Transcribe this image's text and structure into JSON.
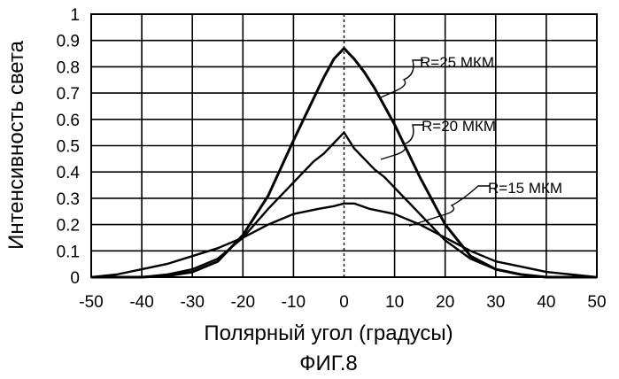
{
  "chart_data": {
    "type": "line",
    "title": "",
    "caption": "ФИГ.8",
    "xlabel": "Полярный угол (градусы)",
    "ylabel": "Интенсивность света",
    "xlim": [
      -50,
      50
    ],
    "ylim": [
      0,
      1
    ],
    "xticks": [
      -50,
      -40,
      -30,
      -20,
      -10,
      0,
      10,
      20,
      30,
      40,
      50
    ],
    "yticks": [
      0,
      0.1,
      0.2,
      0.3,
      0.4,
      0.5,
      0.6,
      0.7,
      0.8,
      0.9,
      1
    ],
    "ytick_labels": [
      "0",
      "0.1",
      "0.2",
      "0.3",
      "0.4",
      "0.5",
      "0.6",
      "0.7",
      "0.8",
      "0.9",
      "1"
    ],
    "grid": true,
    "series": [
      {
        "name": "R=25 МКМ",
        "x": [
          -50,
          -40,
          -35,
          -30,
          -25,
          -20,
          -15,
          -10,
          -8,
          -6,
          -4,
          -2,
          0,
          2,
          4,
          6,
          8,
          10,
          15,
          20,
          25,
          30,
          35,
          40,
          50
        ],
        "y": [
          0,
          0,
          0.005,
          0.02,
          0.06,
          0.16,
          0.31,
          0.52,
          0.6,
          0.68,
          0.76,
          0.83,
          0.87,
          0.83,
          0.78,
          0.72,
          0.65,
          0.58,
          0.38,
          0.2,
          0.08,
          0.03,
          0.01,
          0,
          0
        ]
      },
      {
        "name": "R=20 МКМ",
        "x": [
          -50,
          -40,
          -35,
          -30,
          -25,
          -20,
          -15,
          -10,
          -8,
          -6,
          -4,
          -2,
          0,
          2,
          4,
          6,
          8,
          10,
          15,
          20,
          25,
          30,
          35,
          40,
          50
        ],
        "y": [
          0,
          0,
          0.01,
          0.03,
          0.07,
          0.15,
          0.26,
          0.36,
          0.4,
          0.44,
          0.47,
          0.51,
          0.55,
          0.49,
          0.45,
          0.41,
          0.38,
          0.34,
          0.24,
          0.14,
          0.07,
          0.03,
          0.01,
          0,
          0
        ]
      },
      {
        "name": "R=15 МКМ",
        "x": [
          -50,
          -45,
          -40,
          -35,
          -30,
          -25,
          -20,
          -15,
          -10,
          -5,
          -2,
          0,
          2,
          5,
          10,
          15,
          20,
          25,
          30,
          35,
          40,
          45,
          50
        ],
        "y": [
          0,
          0.01,
          0.03,
          0.05,
          0.08,
          0.11,
          0.15,
          0.2,
          0.24,
          0.26,
          0.27,
          0.28,
          0.28,
          0.26,
          0.24,
          0.2,
          0.15,
          0.1,
          0.06,
          0.04,
          0.02,
          0.01,
          0
        ]
      }
    ],
    "legend_labels": [
      {
        "series": 0,
        "text": "R=25 МКМ"
      },
      {
        "series": 1,
        "text": "R=20 МКМ"
      },
      {
        "series": 2,
        "text": "R=15 МКМ"
      }
    ],
    "colors": {
      "line": "#000000",
      "grid": "#000000",
      "background": "#ffffff"
    }
  }
}
